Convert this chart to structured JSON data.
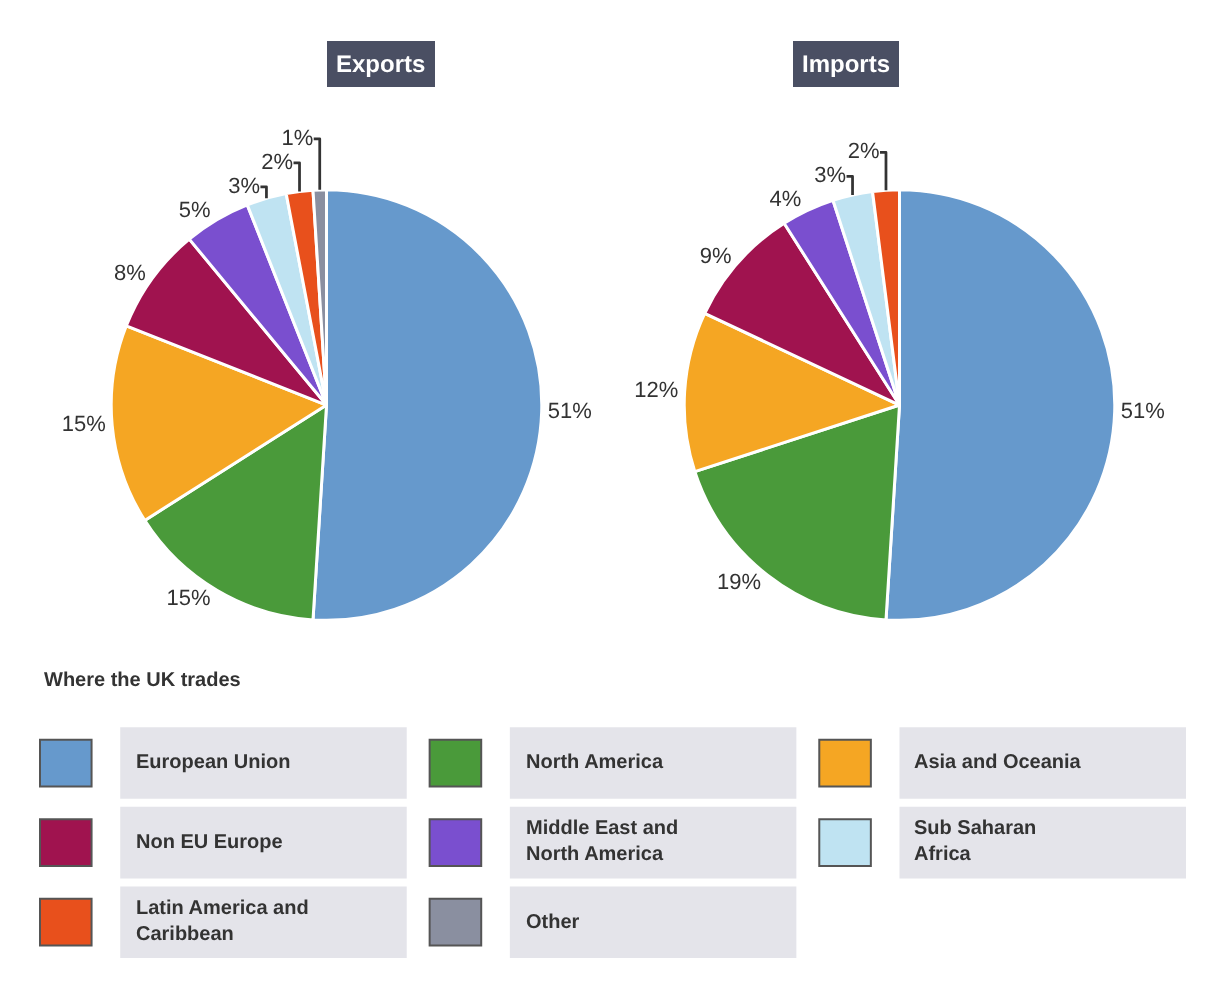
{
  "chart_data": [
    {
      "type": "pie",
      "title": "Exports",
      "legend": "bottom",
      "legend_title": "Where the UK trades",
      "categories": [
        "European Union",
        "North America",
        "Asia and Oceania",
        "Non EU Europe",
        "Middle East and North America",
        "Sub Saharan Africa",
        "Latin America and Caribbean",
        "Other"
      ],
      "values": [
        51,
        15,
        15,
        8,
        5,
        3,
        2,
        1
      ],
      "value_labels": [
        "51%",
        "15%",
        "15%",
        "8%",
        "5%",
        "3%",
        "2%",
        "1%"
      ],
      "colors": [
        "#6699cc",
        "#4a9a3a",
        "#f5a623",
        "#a0134f",
        "#7a4fcf",
        "#bfe3f2",
        "#e8501c",
        "#8a8fa0"
      ]
    },
    {
      "type": "pie",
      "title": "Imports",
      "categories": [
        null,
        null,
        null,
        null,
        null,
        null,
        null
      ],
      "values": [
        51,
        19,
        12,
        9,
        4,
        3,
        2
      ],
      "value_labels": [
        "51%",
        "19%",
        "12%",
        "9%",
        "4%",
        "3%",
        "2%"
      ],
      "colors": [
        "#6699cc",
        "#4a9a3a",
        "#f5a623",
        "#a0134f",
        "#7a4fcf",
        "#bfe3f2",
        "#e8501c"
      ]
    }
  ]
}
